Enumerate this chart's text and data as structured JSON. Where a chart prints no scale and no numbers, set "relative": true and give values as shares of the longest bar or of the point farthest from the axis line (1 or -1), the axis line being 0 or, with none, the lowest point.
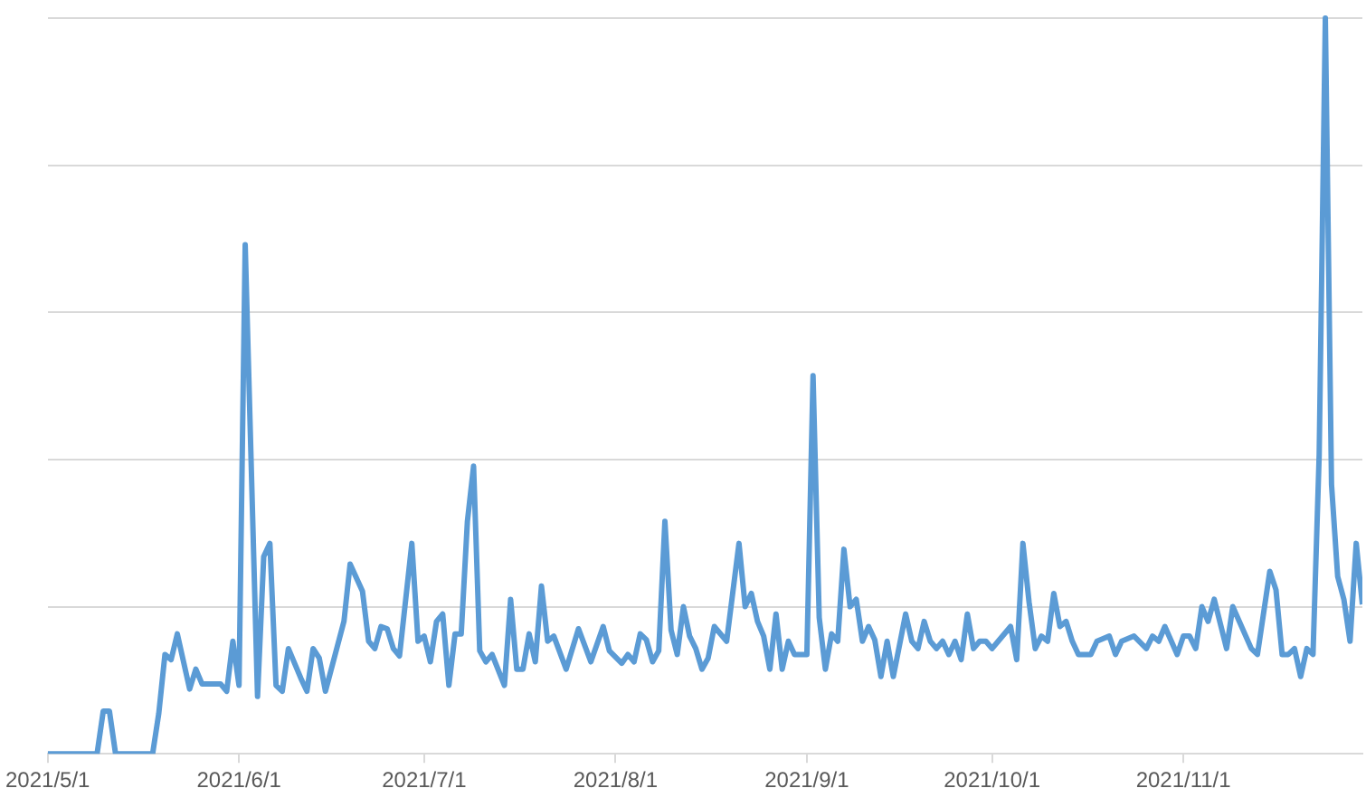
{
  "chart_data": {
    "type": "line",
    "relative": true,
    "grid": "y",
    "marker": "none",
    "line_style": "solid",
    "xlim": [
      "2021-05-01",
      "2021-11-30"
    ],
    "xticks": [
      {
        "value": "2021-05-01",
        "label": "2021/5/1"
      },
      {
        "value": "2021-06-01",
        "label": "2021/6/1"
      },
      {
        "value": "2021-07-01",
        "label": "2021/7/1"
      },
      {
        "value": "2021-08-01",
        "label": "2021/8/1"
      },
      {
        "value": "2021-09-01",
        "label": "2021/9/1"
      },
      {
        "value": "2021-10-01",
        "label": "2021/10/1"
      },
      {
        "value": "2021-11-01",
        "label": "2021/11/1"
      }
    ],
    "series": [
      {
        "color": "#5b9bd5",
        "x": [
          "2021-05-01",
          "2021-05-09",
          "2021-05-10",
          "2021-05-11",
          "2021-05-12",
          "2021-05-18",
          "2021-05-19",
          "2021-05-20",
          "2021-05-21",
          "2021-05-22",
          "2021-05-24",
          "2021-05-25",
          "2021-05-26",
          "2021-05-29",
          "2021-05-30",
          "2021-05-31",
          "2021-06-01",
          "2021-06-02",
          "2021-06-04",
          "2021-06-05",
          "2021-06-06",
          "2021-06-07",
          "2021-06-08",
          "2021-06-09",
          "2021-06-11",
          "2021-06-12",
          "2021-06-13",
          "2021-06-14",
          "2021-06-15",
          "2021-06-18",
          "2021-06-19",
          "2021-06-21",
          "2021-06-22",
          "2021-06-23",
          "2021-06-24",
          "2021-06-25",
          "2021-06-26",
          "2021-06-27",
          "2021-06-29",
          "2021-06-30",
          "2021-07-01",
          "2021-07-02",
          "2021-07-03",
          "2021-07-04",
          "2021-07-05",
          "2021-07-06",
          "2021-07-07",
          "2021-07-08",
          "2021-07-09",
          "2021-07-10",
          "2021-07-11",
          "2021-07-12",
          "2021-07-14",
          "2021-07-15",
          "2021-07-16",
          "2021-07-17",
          "2021-07-18",
          "2021-07-19",
          "2021-07-20",
          "2021-07-21",
          "2021-07-22",
          "2021-07-24",
          "2021-07-26",
          "2021-07-28",
          "2021-07-30",
          "2021-07-31",
          "2021-08-02",
          "2021-08-03",
          "2021-08-04",
          "2021-08-05",
          "2021-08-06",
          "2021-08-07",
          "2021-08-08",
          "2021-08-09",
          "2021-08-10",
          "2021-08-11",
          "2021-08-12",
          "2021-08-13",
          "2021-08-14",
          "2021-08-15",
          "2021-08-16",
          "2021-08-17",
          "2021-08-19",
          "2021-08-21",
          "2021-08-22",
          "2021-08-23",
          "2021-08-24",
          "2021-08-25",
          "2021-08-26",
          "2021-08-27",
          "2021-08-28",
          "2021-08-29",
          "2021-08-30",
          "2021-09-01",
          "2021-09-02",
          "2021-09-03",
          "2021-09-04",
          "2021-09-05",
          "2021-09-06",
          "2021-09-07",
          "2021-09-08",
          "2021-09-09",
          "2021-09-10",
          "2021-09-11",
          "2021-09-12",
          "2021-09-13",
          "2021-09-14",
          "2021-09-15",
          "2021-09-17",
          "2021-09-18",
          "2021-09-19",
          "2021-09-20",
          "2021-09-21",
          "2021-09-22",
          "2021-09-23",
          "2021-09-24",
          "2021-09-25",
          "2021-09-26",
          "2021-09-27",
          "2021-09-28",
          "2021-09-29",
          "2021-09-30",
          "2021-10-01",
          "2021-10-02",
          "2021-10-04",
          "2021-10-05",
          "2021-10-06",
          "2021-10-07",
          "2021-10-08",
          "2021-10-09",
          "2021-10-10",
          "2021-10-11",
          "2021-10-12",
          "2021-10-13",
          "2021-10-14",
          "2021-10-15",
          "2021-10-17",
          "2021-10-18",
          "2021-10-20",
          "2021-10-21",
          "2021-10-22",
          "2021-10-24",
          "2021-10-26",
          "2021-10-27",
          "2021-10-28",
          "2021-10-29",
          "2021-10-31",
          "2021-11-01",
          "2021-11-02",
          "2021-11-03",
          "2021-11-04",
          "2021-11-05",
          "2021-11-06",
          "2021-11-08",
          "2021-11-09",
          "2021-11-12",
          "2021-11-13",
          "2021-11-15",
          "2021-11-16",
          "2021-11-17",
          "2021-11-18",
          "2021-11-19",
          "2021-11-20",
          "2021-11-21",
          "2021-11-22",
          "2021-11-23",
          "2021-11-24",
          "2021-11-25",
          "2021-11-26",
          "2021-11-27",
          "2021-11-28",
          "2021-11-29",
          "2021-11-30"
        ],
        "values": [
          0,
          0,
          0.058,
          0.058,
          0,
          0,
          0.055,
          0.135,
          0.128,
          0.163,
          0.088,
          0.115,
          0.095,
          0.095,
          0.085,
          0.153,
          0.093,
          0.692,
          0.078,
          0.268,
          0.286,
          0.093,
          0.085,
          0.143,
          0.103,
          0.085,
          0.143,
          0.13,
          0.085,
          0.18,
          0.258,
          0.221,
          0.153,
          0.143,
          0.173,
          0.17,
          0.143,
          0.133,
          0.286,
          0.153,
          0.16,
          0.125,
          0.18,
          0.19,
          0.093,
          0.163,
          0.163,
          0.316,
          0.391,
          0.14,
          0.125,
          0.135,
          0.093,
          0.21,
          0.115,
          0.115,
          0.163,
          0.125,
          0.228,
          0.153,
          0.16,
          0.115,
          0.17,
          0.125,
          0.173,
          0.14,
          0.123,
          0.135,
          0.125,
          0.163,
          0.155,
          0.125,
          0.14,
          0.316,
          0.168,
          0.135,
          0.2,
          0.16,
          0.143,
          0.115,
          0.13,
          0.173,
          0.153,
          0.286,
          0.2,
          0.218,
          0.18,
          0.16,
          0.115,
          0.19,
          0.115,
          0.153,
          0.135,
          0.135,
          0.514,
          0.185,
          0.115,
          0.163,
          0.153,
          0.278,
          0.2,
          0.21,
          0.153,
          0.173,
          0.155,
          0.105,
          0.153,
          0.105,
          0.19,
          0.153,
          0.143,
          0.18,
          0.153,
          0.143,
          0.153,
          0.135,
          0.153,
          0.128,
          0.19,
          0.143,
          0.153,
          0.153,
          0.143,
          0.153,
          0.173,
          0.128,
          0.286,
          0.206,
          0.143,
          0.16,
          0.153,
          0.218,
          0.173,
          0.18,
          0.153,
          0.135,
          0.135,
          0.153,
          0.16,
          0.135,
          0.153,
          0.16,
          0.143,
          0.16,
          0.153,
          0.173,
          0.135,
          0.16,
          0.16,
          0.143,
          0.2,
          0.18,
          0.21,
          0.143,
          0.2,
          0.143,
          0.135,
          0.248,
          0.223,
          0.135,
          0.135,
          0.143,
          0.105,
          0.143,
          0.135,
          0.406,
          1,
          0.366,
          0.241,
          0.21,
          0.153,
          0.286,
          0.203
        ]
      }
    ]
  }
}
